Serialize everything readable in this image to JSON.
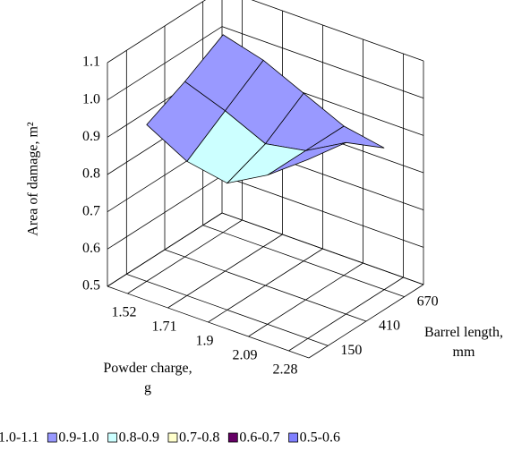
{
  "chart_data": {
    "type": "surface",
    "z_label": "Area of damage, m²",
    "x_label": "Powder charge, g",
    "y_label": "Barrel length, mm",
    "categories": [
      "1.52",
      "1.71",
      "1.9",
      "2.09",
      "2.28"
    ],
    "series": [
      {
        "name": "150",
        "values": [
          0.92,
          0.86,
          0.84,
          0.9,
          0.98
        ]
      },
      {
        "name": "410",
        "values": [
          0.97,
          0.93,
          0.88,
          0.9,
          0.96
        ]
      },
      {
        "name": "670",
        "values": [
          1.03,
          1.0,
          0.95,
          0.9,
          0.88
        ]
      }
    ],
    "zlim": [
      0.5,
      1.1
    ],
    "zticks": [
      0.5,
      0.6,
      0.7,
      0.8,
      0.9,
      {
        "value": 1,
        "label": "1.0"
      },
      1.1
    ],
    "bands": [
      {
        "name": "1.0-1.1",
        "range": [
          1.0,
          1.1
        ],
        "color": "#8080ff"
      },
      {
        "name": "0.9-1.0",
        "range": [
          0.9,
          1.0
        ],
        "color": "#9999ff"
      },
      {
        "name": "0.8-0.9",
        "range": [
          0.8,
          0.9
        ],
        "color": "#ccffff"
      },
      {
        "name": "0.7-0.8",
        "range": [
          0.7,
          0.8
        ],
        "color": "#ffffcc"
      },
      {
        "name": "0.6-0.7",
        "range": [
          0.6,
          0.7
        ],
        "color": "#660066"
      },
      {
        "name": "0.5-0.6",
        "range": [
          0.5,
          0.6
        ],
        "color": "#8080ff"
      }
    ],
    "grid": true
  }
}
